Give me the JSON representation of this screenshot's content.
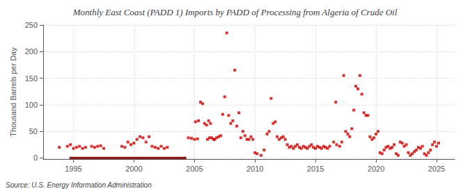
{
  "chart_data": {
    "type": "scatter",
    "title": "Monthly East Coast (PADD 1) Imports by PADD of Processing from Algeria of Crude Oil",
    "ylabel": "Thousand Barrels per Day",
    "annotations": [
      "Source: U.S. Energy Information Administration"
    ],
    "xlim": [
      1992.5,
      2026.5
    ],
    "ylim": [
      -2,
      250
    ],
    "xticks": [
      1995,
      2000,
      2005,
      2010,
      2015,
      2020,
      2025
    ],
    "yticks": [
      0,
      50,
      100,
      150,
      200,
      250
    ],
    "grid": true,
    "series": [
      {
        "type": "line",
        "color": "#8b1a1a",
        "line_style": "solid",
        "x": [
          1994.67,
          2004.33
        ],
        "values": [
          0,
          0
        ]
      },
      {
        "type": "scatter",
        "color": "#cc0000",
        "marker": "square",
        "x": [
          1993.83,
          1994.5,
          1994.75,
          1995.0,
          1995.25,
          1995.5,
          1995.75,
          1996.0,
          1996.5,
          1996.75,
          1997.0,
          1997.25,
          1997.5,
          1999.0,
          1999.25,
          1999.5,
          1999.75,
          2000.0,
          2000.25,
          2000.5,
          2000.75,
          2001.0,
          2001.25,
          2001.5,
          2001.75,
          2002.0,
          2002.25,
          2002.5,
          2002.75,
          2004.5,
          2004.75,
          2005.0,
          2005.25,
          2005.08,
          2005.33,
          2005.5,
          2005.67,
          2005.83,
          2006.0,
          2006.17,
          2006.33,
          2006.08,
          2006.25,
          2006.42,
          2006.58,
          2006.67,
          2006.83,
          2007.0,
          2007.17,
          2007.33,
          2007.5,
          2007.67,
          2007.83,
          2008.0,
          2008.17,
          2008.33,
          2008.5,
          2008.67,
          2008.83,
          2009.0,
          2009.17,
          2009.33,
          2009.5,
          2009.67,
          2009.83,
          2010.0,
          2010.17,
          2010.5,
          2010.75,
          2011.0,
          2011.17,
          2011.33,
          2011.5,
          2011.67,
          2011.83,
          2012.0,
          2012.17,
          2012.33,
          2012.5,
          2012.67,
          2012.83,
          2013.0,
          2013.17,
          2013.33,
          2013.5,
          2013.67,
          2013.83,
          2014.0,
          2014.17,
          2014.33,
          2014.5,
          2014.67,
          2014.83,
          2015.0,
          2015.17,
          2015.33,
          2015.5,
          2015.67,
          2015.83,
          2016.0,
          2016.17,
          2016.67,
          2016.5,
          2016.75,
          2017.0,
          2017.17,
          2017.33,
          2017.5,
          2017.67,
          2017.83,
          2018.0,
          2018.17,
          2018.33,
          2018.5,
          2018.67,
          2018.83,
          2019.0,
          2019.17,
          2019.33,
          2019.5,
          2019.67,
          2019.83,
          2020.0,
          2020.17,
          2020.33,
          2020.5,
          2020.67,
          2020.83,
          2021.0,
          2021.17,
          2021.33,
          2021.5,
          2021.67,
          2021.83,
          2022.0,
          2022.17,
          2022.33,
          2022.5,
          2022.67,
          2022.83,
          2023.0,
          2023.17,
          2023.33,
          2023.5,
          2023.67,
          2023.83,
          2024.0,
          2024.17,
          2024.33,
          2024.5,
          2024.67,
          2024.83,
          2025.0,
          2025.17
        ],
        "values": [
          20,
          22,
          25,
          18,
          20,
          22,
          18,
          20,
          22,
          20,
          22,
          23,
          18,
          22,
          20,
          30,
          25,
          28,
          35,
          40,
          38,
          30,
          40,
          22,
          20,
          18,
          22,
          18,
          20,
          38,
          37,
          35,
          36,
          68,
          70,
          105,
          102,
          65,
          62,
          70,
          65,
          35,
          38,
          38,
          35,
          35,
          38,
          40,
          42,
          82,
          115,
          235,
          80,
          65,
          70,
          165,
          60,
          85,
          38,
          50,
          42,
          35,
          35,
          40,
          35,
          10,
          8,
          5,
          15,
          45,
          50,
          112,
          65,
          68,
          40,
          35,
          38,
          40,
          35,
          25,
          20,
          22,
          18,
          22,
          25,
          20,
          18,
          22,
          20,
          18,
          22,
          25,
          20,
          18,
          22,
          20,
          18,
          22,
          20,
          18,
          22,
          105,
          30,
          25,
          22,
          30,
          155,
          50,
          45,
          40,
          55,
          90,
          135,
          130,
          155,
          120,
          85,
          80,
          80,
          40,
          35,
          38,
          45,
          50,
          10,
          8,
          15,
          20,
          22,
          18,
          20,
          25,
          8,
          5,
          30,
          28,
          22,
          25,
          10,
          5,
          8,
          12,
          15,
          20,
          18,
          22,
          8,
          5,
          10,
          15,
          25,
          30,
          22,
          28
        ]
      }
    ]
  }
}
